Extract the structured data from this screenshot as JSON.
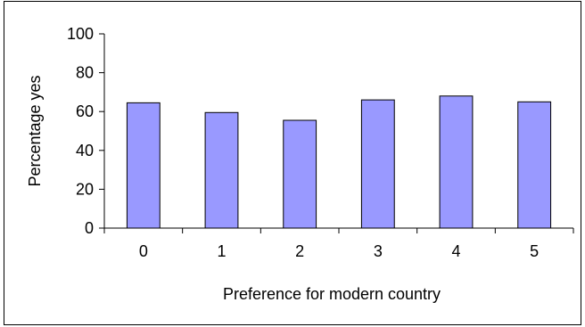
{
  "chart_data": {
    "type": "bar",
    "categories": [
      "0",
      "1",
      "2",
      "3",
      "4",
      "5"
    ],
    "values": [
      64.5,
      59.5,
      55.5,
      66,
      68,
      65
    ],
    "xlabel": "Preference for modern country",
    "ylabel": "Percentage yes",
    "ylim": [
      0,
      100
    ],
    "yticks": [
      "0",
      "20",
      "40",
      "60",
      "80",
      "100"
    ],
    "grid": false,
    "legend": "none",
    "bar_color": "#9999ff",
    "bar_edge_color": "#000000"
  }
}
